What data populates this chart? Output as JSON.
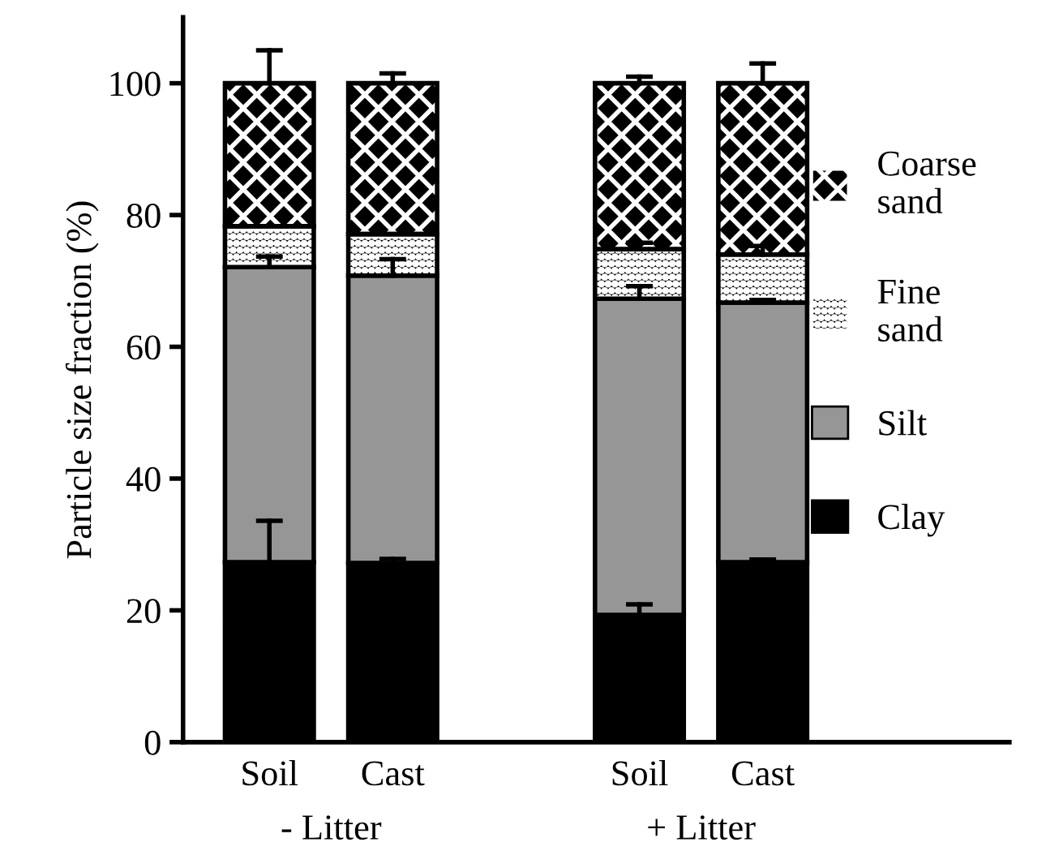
{
  "chart_data": {
    "type": "bar",
    "stacked": true,
    "ylabel": "Particle size fraction (%)",
    "categories": [
      "Soil",
      "Cast",
      null,
      "Soil",
      "Cast"
    ],
    "series": [
      {
        "name": "Clay",
        "color": "#000000",
        "values": [
          27.3,
          27.2,
          null,
          19.3,
          27.3
        ],
        "errors": [
          [
            27.3,
            33.6
          ],
          [
            27.2,
            27.8
          ],
          null,
          [
            19.3,
            20.9
          ],
          [
            27.3,
            27.7
          ]
        ]
      },
      {
        "name": "Silt",
        "color": "#969696",
        "values": [
          44.8,
          43.6,
          null,
          48.0,
          39.4
        ],
        "errors": [
          [
            72.1,
            73.7
          ],
          [
            70.8,
            73.3
          ],
          null,
          [
            67.3,
            69.2
          ],
          [
            66.7,
            67.1
          ]
        ]
      },
      {
        "name": "Fine\nsand",
        "color": "#000000",
        "values": [
          6.2,
          6.3,
          null,
          7.5,
          7.3
        ],
        "errors": [
          null,
          null,
          null,
          [
            74.8,
            75.8
          ],
          [
            74.0,
            75.3
          ]
        ]
      },
      {
        "name": "Coarse\nsand",
        "color": "#000000",
        "values": [
          21.7,
          22.9,
          null,
          25.2,
          26.0
        ],
        "errors": [
          [
            100,
            105
          ],
          [
            100,
            101.5
          ],
          null,
          [
            100,
            101
          ],
          [
            100,
            103
          ]
        ]
      }
    ],
    "annotations": [
      "- Litter",
      "+ Litter"
    ],
    "ylim": [
      0,
      110
    ],
    "yticks": [
      0,
      20,
      40,
      60,
      80,
      100
    ],
    "grid": false,
    "legend": "right"
  }
}
